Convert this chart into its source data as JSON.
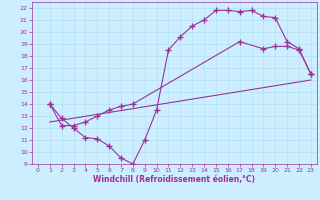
{
  "xlabel": "Windchill (Refroidissement éolien,°C)",
  "xlim": [
    -0.5,
    23.5
  ],
  "ylim": [
    9,
    22.5
  ],
  "xticks": [
    0,
    1,
    2,
    3,
    4,
    5,
    6,
    7,
    8,
    9,
    10,
    11,
    12,
    13,
    14,
    15,
    16,
    17,
    18,
    19,
    20,
    21,
    22,
    23
  ],
  "yticks": [
    9,
    10,
    11,
    12,
    13,
    14,
    15,
    16,
    17,
    18,
    19,
    20,
    21,
    22
  ],
  "bg_color": "#cceeff",
  "grid_color": "#aaddee",
  "line_color": "#993399",
  "line1_x": [
    1,
    2,
    3,
    4,
    5,
    6,
    7,
    8,
    9,
    10,
    11,
    12,
    13,
    14,
    15,
    16,
    17,
    18,
    19,
    20,
    21,
    22,
    23
  ],
  "line1_y": [
    14.0,
    12.8,
    12.0,
    11.2,
    11.1,
    10.5,
    9.5,
    9.0,
    11.0,
    13.5,
    18.5,
    19.6,
    20.5,
    21.0,
    21.8,
    21.8,
    21.7,
    21.8,
    21.3,
    21.2,
    19.2,
    18.6,
    16.5
  ],
  "line2_x": [
    1,
    2,
    3,
    4,
    5,
    6,
    7,
    8,
    17,
    19,
    20,
    21,
    22,
    23
  ],
  "line2_y": [
    14.0,
    12.2,
    12.2,
    12.5,
    13.0,
    13.5,
    13.8,
    14.0,
    19.2,
    18.6,
    18.8,
    18.8,
    18.5,
    16.5
  ],
  "line3_x": [
    1,
    23
  ],
  "line3_y": [
    12.5,
    16.0
  ],
  "marker": "+",
  "markersize": 4,
  "linewidth": 0.8,
  "tick_fontsize": 4.5,
  "xlabel_fontsize": 5.5
}
